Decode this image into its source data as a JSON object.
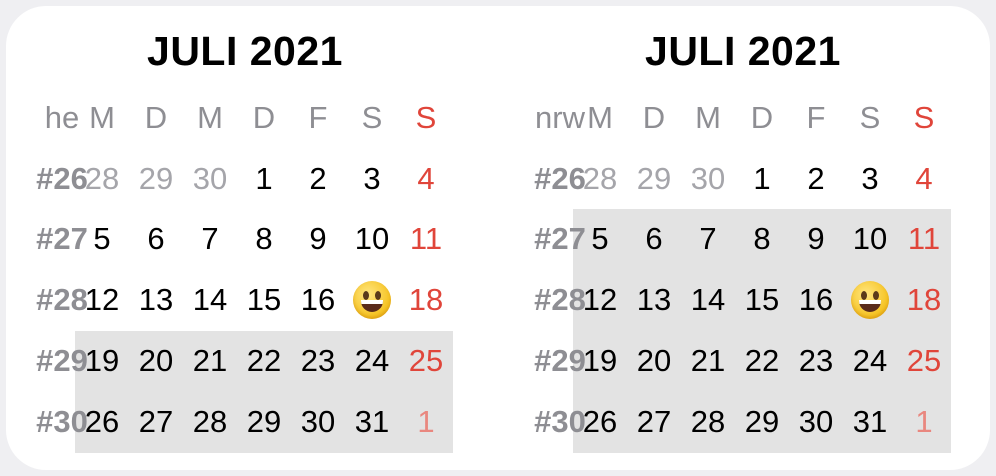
{
  "calendars": [
    {
      "title": "JULI 2021",
      "region": "he",
      "weekday_headers": [
        "M",
        "D",
        "M",
        "D",
        "F",
        "S",
        "S"
      ],
      "highlight_weeks": [
        "#29",
        "#30"
      ],
      "weeks": [
        {
          "week": "#26",
          "days": [
            "28",
            "29",
            "30",
            "1",
            "2",
            "3",
            "4"
          ],
          "muted": [
            true,
            true,
            true,
            false,
            false,
            false,
            false
          ]
        },
        {
          "week": "#27",
          "days": [
            "5",
            "6",
            "7",
            "8",
            "9",
            "10",
            "11"
          ],
          "muted": [
            false,
            false,
            false,
            false,
            false,
            false,
            false
          ]
        },
        {
          "week": "#28",
          "days": [
            "12",
            "13",
            "14",
            "15",
            "16",
            "today-emoji",
            "18"
          ],
          "muted": [
            false,
            false,
            false,
            false,
            false,
            false,
            false
          ]
        },
        {
          "week": "#29",
          "days": [
            "19",
            "20",
            "21",
            "22",
            "23",
            "24",
            "25"
          ],
          "muted": [
            false,
            false,
            false,
            false,
            false,
            false,
            false
          ]
        },
        {
          "week": "#30",
          "days": [
            "26",
            "27",
            "28",
            "29",
            "30",
            "31",
            "1"
          ],
          "muted": [
            false,
            false,
            false,
            false,
            false,
            false,
            true
          ]
        }
      ]
    },
    {
      "title": "JULI 2021",
      "region": "nrw",
      "weekday_headers": [
        "M",
        "D",
        "M",
        "D",
        "F",
        "S",
        "S"
      ],
      "highlight_weeks": [
        "#27",
        "#28",
        "#29",
        "#30"
      ],
      "weeks": [
        {
          "week": "#26",
          "days": [
            "28",
            "29",
            "30",
            "1",
            "2",
            "3",
            "4"
          ],
          "muted": [
            true,
            true,
            true,
            false,
            false,
            false,
            false
          ]
        },
        {
          "week": "#27",
          "days": [
            "5",
            "6",
            "7",
            "8",
            "9",
            "10",
            "11"
          ],
          "muted": [
            false,
            false,
            false,
            false,
            false,
            false,
            false
          ]
        },
        {
          "week": "#28",
          "days": [
            "12",
            "13",
            "14",
            "15",
            "16",
            "today-emoji",
            "18"
          ],
          "muted": [
            false,
            false,
            false,
            false,
            false,
            false,
            false
          ]
        },
        {
          "week": "#29",
          "days": [
            "19",
            "20",
            "21",
            "22",
            "23",
            "24",
            "25"
          ],
          "muted": [
            false,
            false,
            false,
            false,
            false,
            false,
            false
          ]
        },
        {
          "week": "#30",
          "days": [
            "26",
            "27",
            "28",
            "29",
            "30",
            "31",
            "1"
          ],
          "muted": [
            false,
            false,
            false,
            false,
            false,
            false,
            true
          ]
        }
      ]
    }
  ],
  "today_icon": "grinning-face-emoji-icon",
  "colors": {
    "sunday": "#e0453a",
    "muted": "#a5a5aa",
    "label": "#8e8e93",
    "holiday_highlight": "#e3e3e3"
  }
}
